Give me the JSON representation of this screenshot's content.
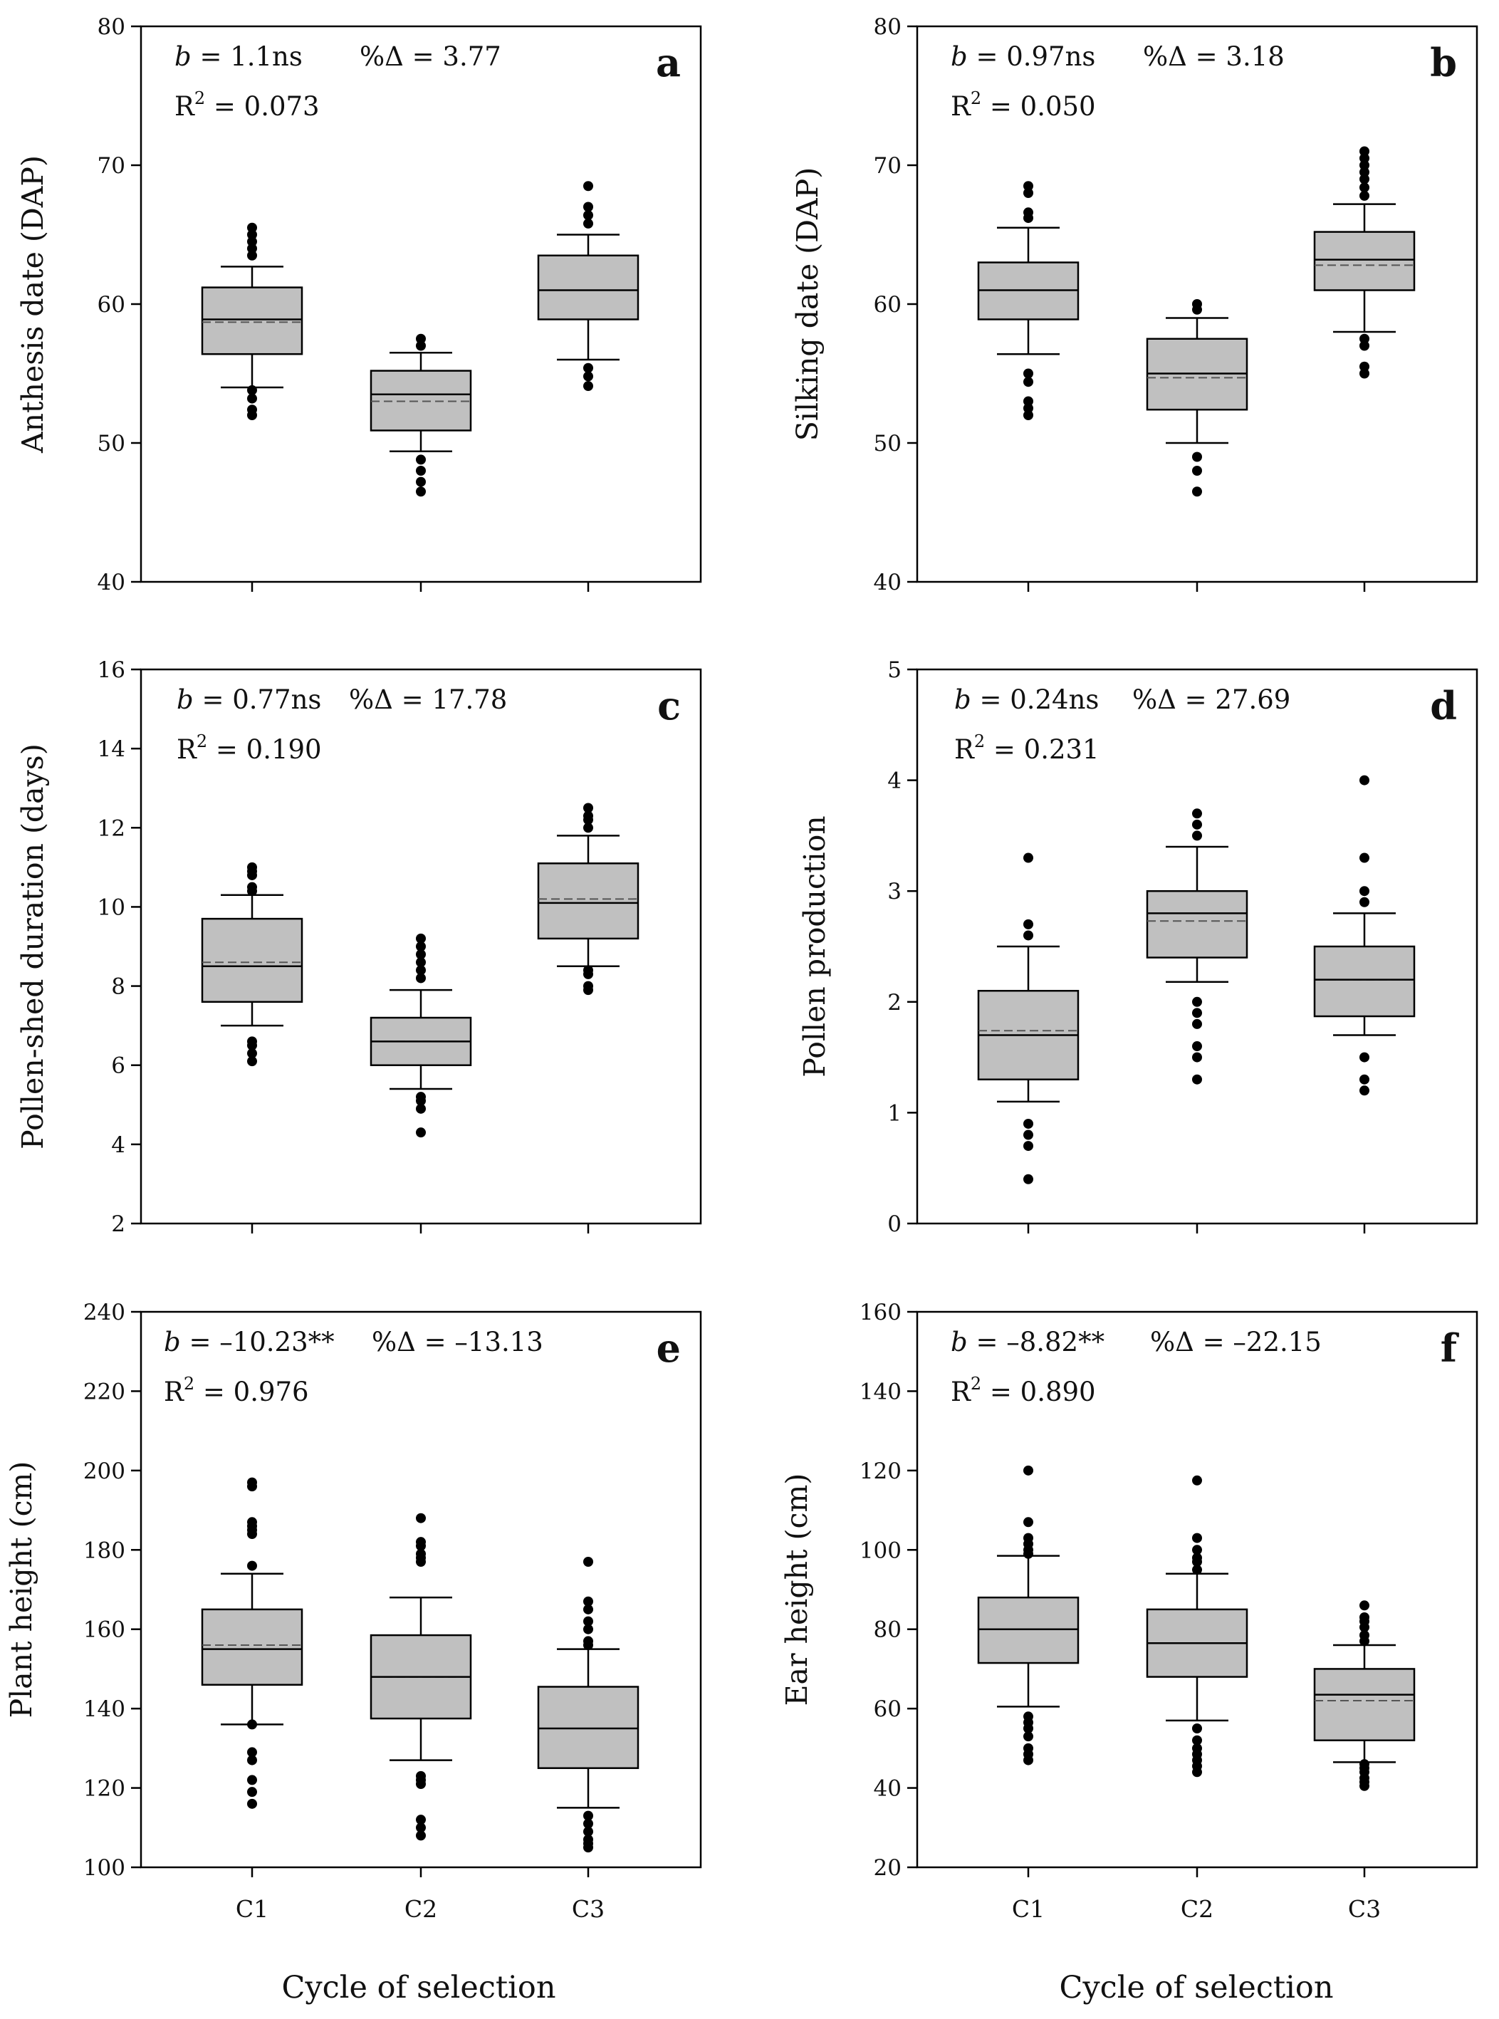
{
  "figure": {
    "x_axis_title": "Cycle of selection",
    "categories": [
      "C1",
      "C2",
      "C3"
    ]
  },
  "colors": {
    "box_fill": "#c0c0c0",
    "stroke": "#000000",
    "mean_line": "#555555"
  },
  "chart_data": [
    {
      "type": "box",
      "panel": "a",
      "ylabel": "Anthesis date (DAP)",
      "ylim": [
        40,
        80
      ],
      "yticks": [
        40,
        50,
        60,
        70,
        80
      ],
      "annotation": {
        "b_label": "b",
        "b_value": " = 1.1ns",
        "pct": "%Δ = 3.77",
        "r2_label": "R",
        "r2_value": " = 0.073"
      },
      "boxes": [
        {
          "category": "C1",
          "q1": 56.4,
          "median": 58.9,
          "q3": 61.2,
          "mean": 58.7,
          "whisker_low": 54.0,
          "whisker_high": 62.7,
          "outliers": [
            52.0,
            52.4,
            53.2,
            53.8,
            63.5,
            64.0,
            64.5,
            65.0,
            65.5
          ]
        },
        {
          "category": "C2",
          "q1": 50.9,
          "median": 53.5,
          "q3": 55.2,
          "mean": 53.0,
          "whisker_low": 49.4,
          "whisker_high": 56.5,
          "outliers": [
            46.5,
            47.2,
            48.0,
            48.8,
            57.0,
            57.5
          ]
        },
        {
          "category": "C3",
          "q1": 58.9,
          "median": 61.0,
          "q3": 63.5,
          "mean": 61.0,
          "whisker_low": 56.0,
          "whisker_high": 65.0,
          "outliers": [
            54.1,
            54.8,
            55.4,
            65.8,
            66.4,
            67.0,
            68.5
          ]
        }
      ]
    },
    {
      "type": "box",
      "panel": "b",
      "ylabel": "Silking date (DAP)",
      "ylim": [
        40,
        80
      ],
      "yticks": [
        40,
        50,
        60,
        70,
        80
      ],
      "annotation": {
        "b_label": "b",
        "b_value": " = 0.97ns",
        "pct": "%Δ = 3.18",
        "r2_label": "R",
        "r2_value": " = 0.050"
      },
      "boxes": [
        {
          "category": "C1",
          "q1": 58.9,
          "median": 61.0,
          "q3": 63.0,
          "mean": 61.0,
          "whisker_low": 56.4,
          "whisker_high": 65.5,
          "outliers": [
            52.0,
            52.5,
            53.0,
            54.4,
            55.0,
            66.2,
            66.6,
            68.0,
            68.5
          ]
        },
        {
          "category": "C2",
          "q1": 52.4,
          "median": 55.0,
          "q3": 57.5,
          "mean": 54.7,
          "whisker_low": 50.0,
          "whisker_high": 59.0,
          "outliers": [
            46.5,
            48.0,
            49.0,
            59.6,
            60.0
          ]
        },
        {
          "category": "C3",
          "q1": 61.0,
          "median": 63.2,
          "q3": 65.2,
          "mean": 62.8,
          "whisker_low": 58.0,
          "whisker_high": 67.2,
          "outliers": [
            55.0,
            55.5,
            57.0,
            57.5,
            67.8,
            68.4,
            69.0,
            69.5,
            70.0,
            70.5,
            71.0
          ]
        }
      ]
    },
    {
      "type": "box",
      "panel": "c",
      "ylabel": "Pollen-shed duration (days)",
      "ylim": [
        2,
        16
      ],
      "yticks": [
        2,
        4,
        6,
        8,
        10,
        12,
        14,
        16
      ],
      "annotation": {
        "b_label": "b",
        "b_value": " = 0.77ns",
        "pct": "%Δ = 17.78",
        "r2_label": "R",
        "r2_value": " = 0.190"
      },
      "boxes": [
        {
          "category": "C1",
          "q1": 7.6,
          "median": 8.5,
          "q3": 9.7,
          "mean": 8.6,
          "whisker_low": 7.0,
          "whisker_high": 10.3,
          "outliers": [
            6.1,
            6.3,
            6.5,
            6.6,
            10.4,
            10.5,
            10.8,
            10.9,
            11.0
          ]
        },
        {
          "category": "C2",
          "q1": 6.0,
          "median": 6.6,
          "q3": 7.2,
          "mean": 6.6,
          "whisker_low": 5.4,
          "whisker_high": 7.9,
          "outliers": [
            4.3,
            4.9,
            5.1,
            5.2,
            8.2,
            8.4,
            8.6,
            8.8,
            9.0,
            9.2
          ]
        },
        {
          "category": "C3",
          "q1": 9.2,
          "median": 10.1,
          "q3": 11.1,
          "mean": 10.2,
          "whisker_low": 8.5,
          "whisker_high": 11.8,
          "outliers": [
            7.9,
            8.0,
            8.3,
            8.4,
            12.0,
            12.2,
            12.3,
            12.5
          ]
        }
      ]
    },
    {
      "type": "box",
      "panel": "d",
      "ylabel": "Pollen production",
      "ylim": [
        0,
        5
      ],
      "yticks": [
        0,
        1,
        2,
        3,
        4,
        5
      ],
      "annotation": {
        "b_label": "b",
        "b_value": " = 0.24ns",
        "pct": "%Δ = 27.69",
        "r2_label": "R",
        "r2_value": " = 0.231"
      },
      "boxes": [
        {
          "category": "C1",
          "q1": 1.3,
          "median": 1.7,
          "q3": 2.1,
          "mean": 1.74,
          "whisker_low": 1.1,
          "whisker_high": 2.5,
          "outliers": [
            0.4,
            0.7,
            0.8,
            0.9,
            2.6,
            2.7,
            3.3
          ]
        },
        {
          "category": "C2",
          "q1": 2.4,
          "median": 2.8,
          "q3": 3.0,
          "mean": 2.73,
          "whisker_low": 2.18,
          "whisker_high": 3.4,
          "outliers": [
            1.3,
            1.5,
            1.6,
            1.8,
            1.9,
            2.0,
            3.5,
            3.6,
            3.7
          ]
        },
        {
          "category": "C3",
          "q1": 1.87,
          "median": 2.2,
          "q3": 2.5,
          "mean": 2.2,
          "whisker_low": 1.7,
          "whisker_high": 2.8,
          "outliers": [
            1.2,
            1.3,
            1.5,
            2.9,
            3.0,
            3.3,
            4.0
          ]
        }
      ]
    },
    {
      "type": "box",
      "panel": "e",
      "ylabel": "Plant height (cm)",
      "ylim": [
        100,
        240
      ],
      "yticks": [
        100,
        120,
        140,
        160,
        180,
        200,
        220,
        240
      ],
      "annotation": {
        "b_label": "b",
        "b_value": " = –10.23**",
        "pct": "%Δ = –13.13",
        "r2_label": "R",
        "r2_value": " = 0.976"
      },
      "boxes": [
        {
          "category": "C1",
          "q1": 146.0,
          "median": 155.0,
          "q3": 165.0,
          "mean": 156.0,
          "whisker_low": 136.0,
          "whisker_high": 174.0,
          "outliers": [
            116.0,
            119.0,
            122.0,
            127.0,
            129.0,
            136.0,
            176.0,
            184.0,
            185.0,
            186.0,
            187.0,
            196.0,
            197.0
          ]
        },
        {
          "category": "C2",
          "q1": 137.5,
          "median": 148.0,
          "q3": 158.5,
          "mean": 148.0,
          "whisker_low": 127.0,
          "whisker_high": 168.0,
          "outliers": [
            108.0,
            110.0,
            112.0,
            121.0,
            122.0,
            123.0,
            177.0,
            178.0,
            179.0,
            181.0,
            182.0,
            188.0
          ]
        },
        {
          "category": "C3",
          "q1": 125.0,
          "median": 135.0,
          "q3": 145.5,
          "mean": 135.0,
          "whisker_low": 115.0,
          "whisker_high": 155.0,
          "outliers": [
            105.0,
            106.0,
            107.0,
            109.0,
            111.0,
            113.0,
            156.0,
            157.0,
            160.0,
            162.0,
            165.0,
            167.0,
            177.0
          ]
        }
      ]
    },
    {
      "type": "box",
      "panel": "f",
      "ylabel": "Ear height (cm)",
      "ylim": [
        20,
        160
      ],
      "yticks": [
        20,
        40,
        60,
        80,
        100,
        120,
        140,
        160
      ],
      "annotation": {
        "b_label": "b",
        "b_value": " = –8.82**",
        "pct": "%Δ = –22.15",
        "r2_label": "R",
        "r2_value": " = 0.890"
      },
      "boxes": [
        {
          "category": "C1",
          "q1": 71.5,
          "median": 80.0,
          "q3": 88.0,
          "mean": 80.0,
          "whisker_low": 60.5,
          "whisker_high": 98.5,
          "outliers": [
            47.0,
            48.5,
            50.0,
            53.0,
            55.0,
            56.5,
            58.0,
            99.0,
            100.0,
            101.5,
            103.0,
            107.0,
            120.0
          ]
        },
        {
          "category": "C2",
          "q1": 68.0,
          "median": 76.5,
          "q3": 85.0,
          "mean": 76.5,
          "whisker_low": 57.0,
          "whisker_high": 94.0,
          "outliers": [
            44.0,
            45.5,
            47.0,
            48.5,
            50.0,
            52.0,
            55.0,
            95.0,
            97.0,
            98.0,
            100.0,
            103.0,
            117.5
          ]
        },
        {
          "category": "C3",
          "q1": 52.0,
          "median": 63.5,
          "q3": 70.0,
          "mean": 62.0,
          "whisker_low": 46.5,
          "whisker_high": 76.0,
          "outliers": [
            40.5,
            41.5,
            42.5,
            44.0,
            45.0,
            46.0,
            77.0,
            78.5,
            80.5,
            82.0,
            83.0,
            86.0
          ]
        }
      ]
    }
  ]
}
